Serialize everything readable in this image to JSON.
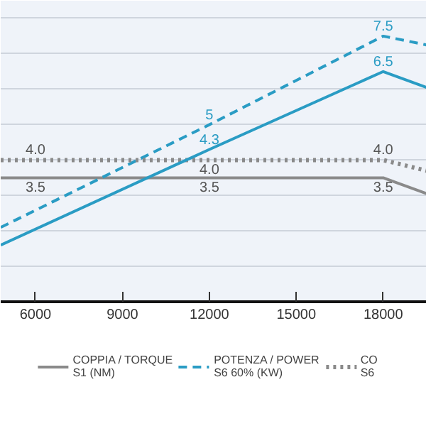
{
  "chart_data": {
    "type": "line",
    "xlim": [
      4800,
      19500
    ],
    "xticks": [
      6000,
      9000,
      12000,
      15000,
      18000
    ],
    "ylim": [
      0,
      8.5
    ],
    "yticks": [
      {
        "value": 1,
        "label": null
      },
      {
        "value": 2,
        "label": null
      },
      {
        "value": 3,
        "label": null
      },
      {
        "value": 4,
        "label": null
      },
      {
        "value": 5,
        "label": null
      },
      {
        "value": 6,
        "label": null
      },
      {
        "value": 7,
        "label": null
      },
      {
        "value": 8,
        "label": null
      }
    ],
    "tick_labels": "x",
    "grid": "y",
    "legend": "bottom",
    "series": [
      {
        "name": "COPPIA / TORQUE\nS1 (NM)",
        "color": "#8a8a8a",
        "line_style": "solid",
        "x": [
          4800,
          6000,
          12000,
          18000,
          19500
        ],
        "values": [
          3.5,
          3.5,
          3.5,
          3.5,
          3.05
        ],
        "value_labels": [
          null,
          "3.5",
          "3.5",
          "3.5",
          null
        ]
      },
      {
        "name": "POTENZA / POWER\nS6 60% (KW)",
        "color": "#2a9cc4",
        "line_style": "dashed",
        "x": [
          4800,
          12000,
          18000,
          19500
        ],
        "values": [
          2.1,
          5,
          7.5,
          7.25
        ],
        "value_labels": [
          null,
          "5",
          "7.5",
          null
        ]
      },
      {
        "name": "CO\nS6",
        "color": "#8a8a8a",
        "line_style": "dotted",
        "x": [
          4800,
          6000,
          12000,
          18000,
          19500
        ],
        "values": [
          4.0,
          4.0,
          4.0,
          4.0,
          3.7
        ],
        "value_labels": [
          null,
          "4.0",
          "4.0",
          "4.0",
          null
        ]
      },
      {
        "color": "#2a9cc4",
        "line_style": "solid",
        "x": [
          4800,
          12000,
          18000,
          19500
        ],
        "values": [
          1.6,
          4.3,
          6.5,
          6.05
        ],
        "value_labels": [
          null,
          "4.3",
          "6.5",
          null
        ]
      }
    ]
  }
}
